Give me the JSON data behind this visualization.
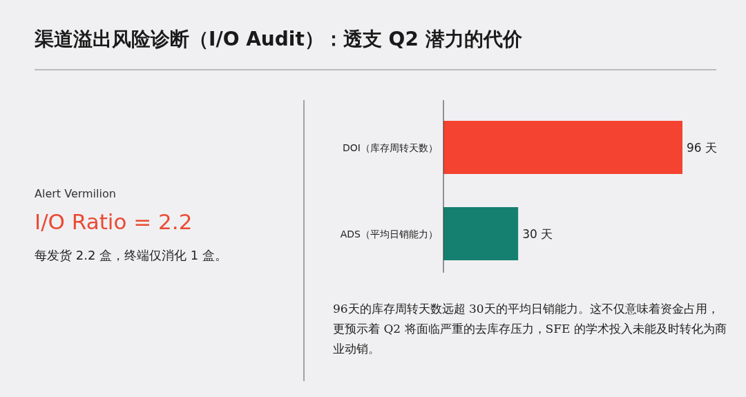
{
  "chart_data": [
    {
      "type": "other",
      "title": "渠道溢出风险诊断（I/O Audit）：透支 Q2 潜力的代价",
      "subtitle": "Alert Vermilion",
      "annotations": [
        "I/O Ratio = 2.2",
        "每发货 2.2 盒，终端仅消化 1 盒。"
      ]
    },
    {
      "type": "bar",
      "orientation": "horizontal",
      "categories": [
        "DOI（库存周转天数）",
        "ADS（平均日销能力）"
      ],
      "values": [
        96,
        30
      ],
      "colors": [
        "#f44331",
        "#15806f"
      ],
      "value_labels": [
        "96 天",
        "30 天"
      ],
      "annotations": [
        "96天的库存周转天数远超 30天的平均日销能力。这不仅意味着资金占用，更预示着 Q2 将面临严重的去库存压力，SFE 的学术投入未能及时转化为商业动销。"
      ]
    }
  ]
}
